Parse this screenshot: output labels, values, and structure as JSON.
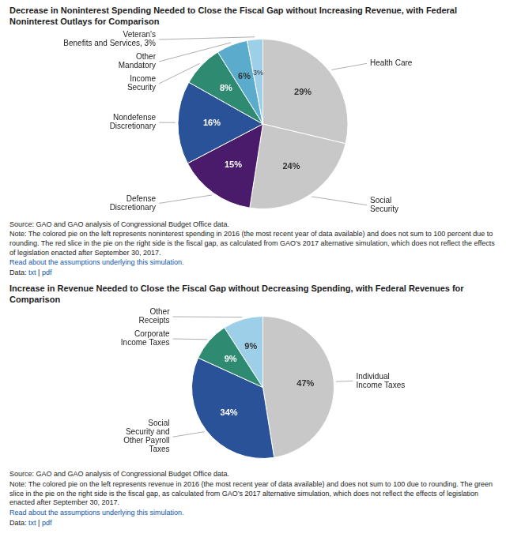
{
  "chart_data": [
    {
      "type": "pie",
      "title": "Decrease in Noninterest Spending Needed to Close the Fiscal Gap without Increasing Revenue, with Federal\nNoninterest Outlays for Comparison",
      "categories": [
        "Health Care",
        "Social\nSecurity",
        "Defense\nDiscretionary",
        "Nondefense\nDiscretionary",
        "Income\nSecurity",
        "Other\nMandatory",
        "Veteran's\nBenefits and Services, 3%"
      ],
      "values": [
        29,
        24,
        15,
        16,
        8,
        6,
        3
      ],
      "value_labels": [
        "29%",
        "24%",
        "15%",
        "16%",
        "8%",
        "6%",
        "3%"
      ],
      "data_labels": true,
      "colors": [
        "#c8c8c8",
        "#c8c8c8",
        "#4a1a6b",
        "#2a5298",
        "#2e8b72",
        "#5aabcc",
        "#9ecfe8"
      ],
      "annotations": [
        [
          {
            "text": "Source: GAO and GAO analysis of Congressional Budget Office data."
          }
        ],
        [
          {
            "text": "Note: The colored pie on the left represents noninterest spending in 2016 (the most recent year of data available) and does not sum to 100 percent due\nto rounding. The red slice in the pie on the right side is the fiscal gap, as calculated from GAO’s 2017 alternative simulation, which does not reflect the\neffects of legislation enacted after September 30, 2017. "
          }
        ],
        [
          {
            "text": "Read about the assumptions underlying this simulation.",
            "color": "#1155aa"
          }
        ],
        [
          {
            "text": "Data: "
          },
          {
            "text": "txt",
            "color": "#1155aa"
          },
          {
            "text": " | "
          },
          {
            "text": "pdf",
            "color": "#1155aa"
          }
        ]
      ]
    },
    {
      "type": "pie",
      "title": "Increase in Revenue Needed to Close the Fiscal Gap without Decreasing Spending, with Federal Revenues for\nComparison",
      "categories": [
        "Individual\nIncome Taxes",
        "Social\nSecurity and\nOther Payroll\nTaxes",
        "Corporate\nIncome Taxes",
        "Other\nReceipts"
      ],
      "values": [
        47,
        34,
        9,
        9
      ],
      "value_labels": [
        "47%",
        "34%",
        "9%",
        "9%"
      ],
      "data_labels": true,
      "colors": [
        "#c8c8c8",
        "#2a5298",
        "#2e8b72",
        "#9ecfe8"
      ],
      "annotations": [
        [
          {
            "text": "Source: GAO and GAO analysis of Congressional Budget Office data."
          }
        ],
        [
          {
            "text": "Note: The colored pie on the left represents revenue in 2016 (the most recent year of data available) and does not sum to 100 due to rounding. The\ngreen slice in the pie on the right side is the fiscal gap, as calculated from GAO’s 2017 alternative simulation, which does not reflect the effects of\nlegislation enacted after September 30, 2017. "
          }
        ],
        [
          {
            "text": "Read about the assumptions underlying this simulation.",
            "color": "#1155aa"
          }
        ],
        [
          {
            "text": "Data: "
          },
          {
            "text": "txt",
            "color": "#1155aa"
          },
          {
            "text": " | "
          },
          {
            "text": "pdf",
            "color": "#1155aa"
          }
        ]
      ]
    }
  ]
}
